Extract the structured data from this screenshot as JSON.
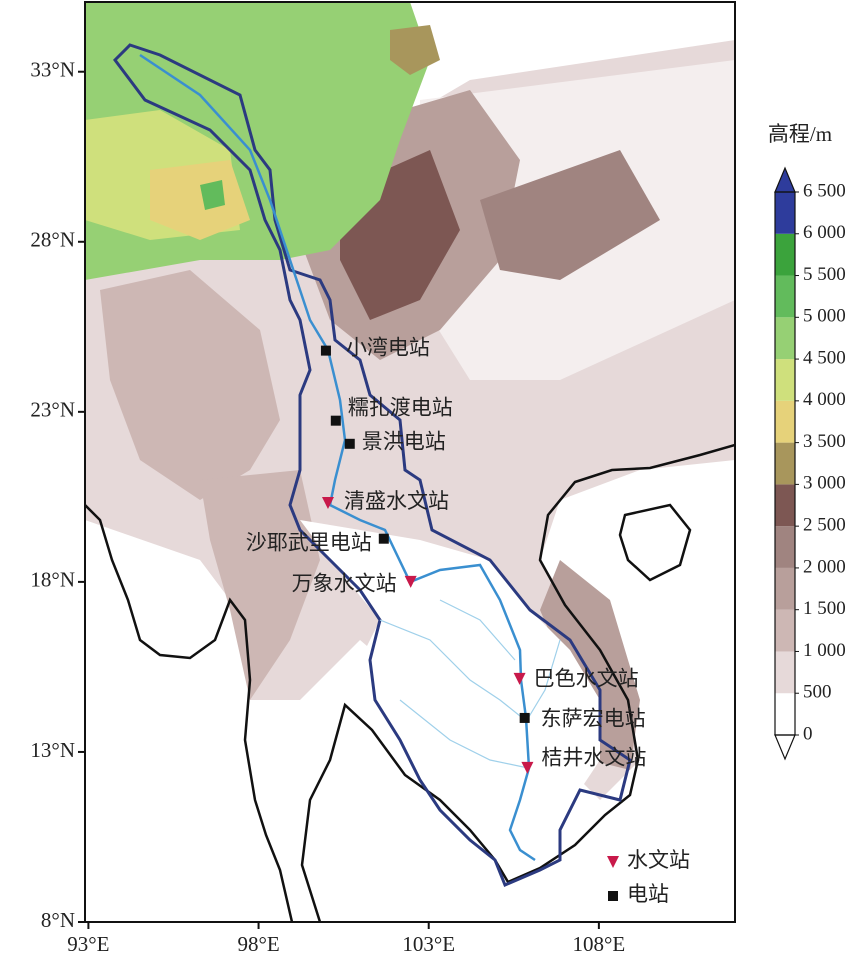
{
  "chart_data": {
    "type": "map",
    "xlim": [
      92.9,
      112.0
    ],
    "ylim": [
      8.0,
      35.05
    ],
    "xticks": [
      {
        "value": 93,
        "label": "93°E"
      },
      {
        "value": 98,
        "label": "98°E"
      },
      {
        "value": 103,
        "label": "103°E"
      },
      {
        "value": 108,
        "label": "108°E"
      }
    ],
    "yticks": [
      {
        "value": 8,
        "label": "8°N"
      },
      {
        "value": 13,
        "label": "13°N"
      },
      {
        "value": 18,
        "label": "18°N"
      },
      {
        "value": 23,
        "label": "23°N"
      },
      {
        "value": 28,
        "label": "28°N"
      },
      {
        "value": 33,
        "label": "33°N"
      }
    ],
    "colorbar": {
      "title": "高程/m",
      "ticks": [
        0,
        500,
        {
          "value": 1000,
          "label": "1 000"
        },
        {
          "value": 1500,
          "label": "1 500"
        },
        {
          "value": 2000,
          "label": "2 000"
        },
        {
          "value": 2500,
          "label": "2 500"
        },
        {
          "value": 3000,
          "label": "3 000"
        },
        {
          "value": 3500,
          "label": "3 500"
        },
        {
          "value": 4000,
          "label": "4 000"
        },
        {
          "value": 4500,
          "label": "4 500"
        },
        {
          "value": 5000,
          "label": "5 000"
        },
        {
          "value": 5500,
          "label": "5 500"
        },
        {
          "value": 6000,
          "label": "6 000"
        },
        {
          "value": 6500,
          "label": "6 500"
        }
      ],
      "colors": [
        "#ffffff",
        "#e6d9d9",
        "#cdb7b4",
        "#b89f9b",
        "#a08480",
        "#7d5753",
        "#a8965c",
        "#e6d27a",
        "#cfe07c",
        "#96d074",
        "#62bb5c",
        "#3ba33c",
        "#2e3c9c"
      ]
    },
    "station_groups": [
      {
        "name": "水文站",
        "color": "#c8194a",
        "marker": "triangle",
        "stations": [
          {
            "name": "清盛水文站",
            "lon": 100.04,
            "lat": 20.32
          },
          {
            "name": "万象水文站",
            "lon": 102.47,
            "lat": 18.0
          },
          {
            "name": "巴色水文站",
            "lon": 105.67,
            "lat": 15.15
          },
          {
            "name": "桔井水文站",
            "lon": 105.9,
            "lat": 12.53
          }
        ]
      },
      {
        "name": "电站",
        "color": "#111111",
        "marker": "square",
        "stations": [
          {
            "name": "小湾电站",
            "lon": 99.98,
            "lat": 24.8
          },
          {
            "name": "糯扎渡电站",
            "lon": 100.27,
            "lat": 22.74
          },
          {
            "name": "景洪电站",
            "lon": 100.68,
            "lat": 22.06
          },
          {
            "name": "沙耶武里电站",
            "lon": 101.68,
            "lat": 19.27
          },
          {
            "name": "东萨宏电站",
            "lon": 105.82,
            "lat": 14.0
          }
        ]
      }
    ]
  }
}
